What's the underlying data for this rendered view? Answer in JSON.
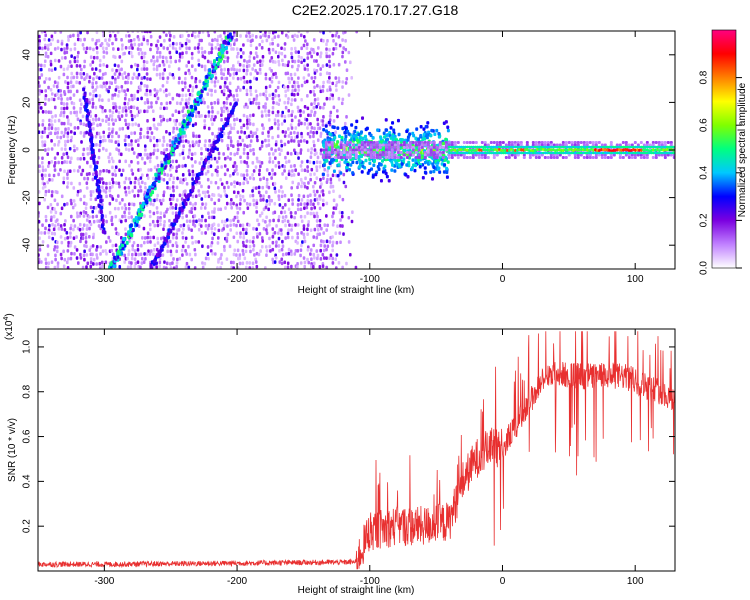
{
  "title": "C2E2.2025.170.17.27.G18",
  "chart_data": [
    {
      "type": "heatmap",
      "xlabel": "Height of straight line (km)",
      "ylabel": "Frequency (Hz)",
      "xlim": [
        -350,
        130
      ],
      "ylim": [
        -50,
        50
      ],
      "xticks": [
        -300,
        -200,
        -100,
        0,
        100
      ],
      "yticks": [
        -40,
        -20,
        0,
        20,
        40
      ],
      "colorbar": {
        "label": "Normalized spectral amplitude",
        "range": [
          0,
          1
        ],
        "ticks": [
          "0.0",
          "0.2",
          "0.4",
          "0.6",
          "0.8"
        ],
        "colors": [
          "#ffffff",
          "#c080ff",
          "#7b00e0",
          "#0000ff",
          "#00c8ff",
          "#00ff80",
          "#80ff00",
          "#ffff00",
          "#ff8000",
          "#ff0000",
          "#ff0080"
        ]
      },
      "features": [
        {
          "name": "noise region",
          "x_range": [
            -350,
            -110
          ],
          "y_range": [
            -50,
            50
          ]
        },
        {
          "name": "streak A",
          "x": [
            -315,
            -300
          ],
          "y": [
            25,
            -35
          ]
        },
        {
          "name": "streak B",
          "x": [
            -295,
            -205
          ],
          "y": [
            -50,
            48
          ]
        },
        {
          "name": "streak C",
          "x": [
            -265,
            -200
          ],
          "y": [
            -50,
            20
          ]
        },
        {
          "name": "scatter cluster",
          "x_range": [
            -135,
            -40
          ],
          "y_range": [
            -15,
            15
          ]
        },
        {
          "name": "carrier line",
          "x_range": [
            -40,
            130
          ],
          "y": 0
        }
      ]
    },
    {
      "type": "line",
      "xlabel": "Height of straight line (km)",
      "ylabel": "SNR (10 * v/v)",
      "y_multiplier": "(x10",
      "y_multiplier_exp": "4",
      "y_multiplier_close": ")",
      "xlim": [
        -350,
        130
      ],
      "ylim": [
        0,
        1.08
      ],
      "xticks": [
        -300,
        -200,
        -100,
        0,
        100
      ],
      "yticks": [
        "0.2",
        "0.4",
        "0.6",
        "0.8",
        "1.0"
      ],
      "color": "#e83030",
      "x": [
        -350,
        -300,
        -200,
        -110,
        -100,
        -80,
        -60,
        -40,
        -30,
        -20,
        -10,
        0,
        20,
        30,
        40,
        60,
        80,
        90,
        100,
        110,
        120,
        130
      ],
      "y": [
        0.03,
        0.03,
        0.035,
        0.04,
        0.18,
        0.2,
        0.2,
        0.22,
        0.4,
        0.5,
        0.55,
        0.55,
        0.75,
        0.85,
        0.88,
        0.87,
        0.87,
        0.87,
        0.85,
        0.82,
        0.8,
        0.76
      ]
    }
  ]
}
